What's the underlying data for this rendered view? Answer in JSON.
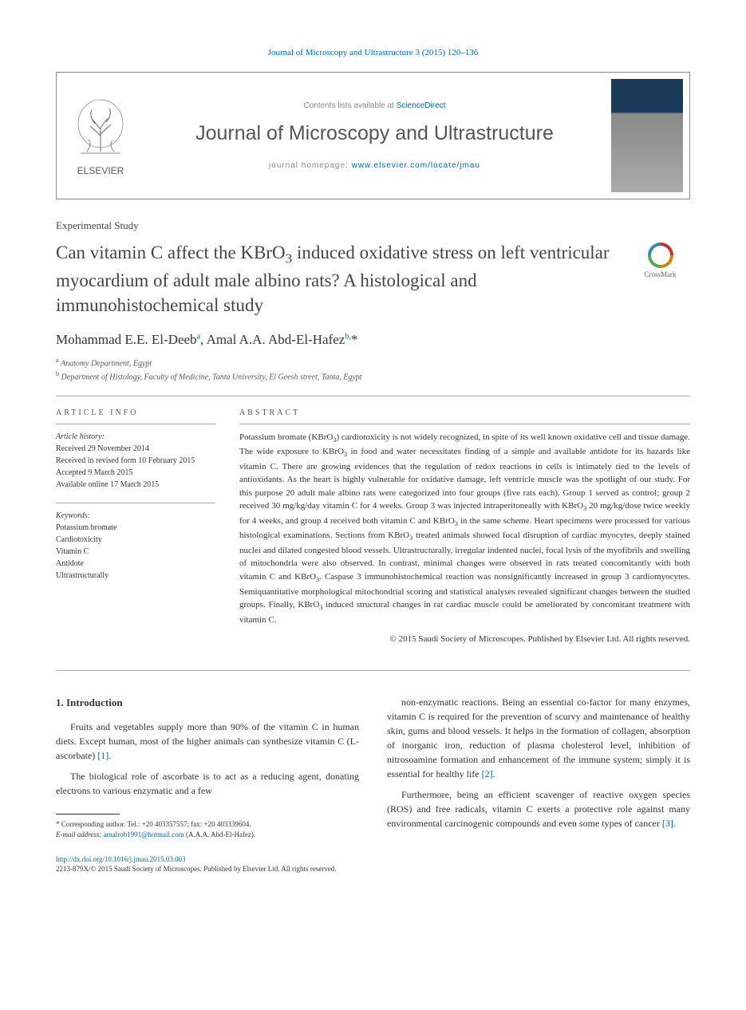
{
  "citation": {
    "journal_link": "Journal of Microscopy and Ultrastructure 3 (2015) 120–136"
  },
  "header": {
    "contents_prefix": "Contents lists available at ",
    "contents_link": "ScienceDirect",
    "journal_title": "Journal of Microscopy and Ultrastructure",
    "homepage_prefix": "journal homepage: ",
    "homepage_link": "www.elsevier.com/locate/jmau",
    "elsevier_label": "ELSEVIER"
  },
  "article": {
    "type": "Experimental Study",
    "title_html": "Can vitamin C affect the KBrO<sub>3</sub> induced oxidative stress on left ventricular myocardium of adult male albino rats? A histological and immunohistochemical study",
    "crossmark_label": "CrossMark",
    "authors_html": "Mohammad E.E. El-Deeb<sup>a</sup>, Amal A.A. Abd-El-Hafez<sup>b,</sup>*",
    "affiliations": [
      {
        "sup": "a",
        "text": "Anatomy Department, Egypt"
      },
      {
        "sup": "b",
        "text": "Department of Histology, Faculty of Medicine, Tanta University, El Geesh street, Tanta, Egypt"
      }
    ]
  },
  "info": {
    "heading": "ARTICLE INFO",
    "history_label": "Article history:",
    "history": [
      "Received 29 November 2014",
      "Received in revised form 10 February 2015",
      "Accepted 9 March 2015",
      "Available online 17 March 2015"
    ],
    "keywords_label": "Keywords:",
    "keywords": [
      "Potassium bromate",
      "Cardiotoxicity",
      "Vitamin C",
      "Antidote",
      "Ultrastructurally"
    ]
  },
  "abstract": {
    "heading": "ABSTRACT",
    "text_html": "Potassium bromate (KBrO<sub>3</sub>) cardiotoxicity is not widely recognized, in spite of its well known oxidative cell and tissue damage. The wide exposure to KBrO<sub>3</sub> in food and water necessitates finding of a simple and available antidote for its hazards like vitamin C. There are growing evidences that the regulation of redox reactions in cells is intimately tied to the levels of antioxidants. As the heart is highly vulnerable for oxidative damage, left ventricle muscle was the spotlight of our study. For this purpose 20 adult male albino rats were categorized into four groups (five rats each). Group 1 served as control; group 2 received 30 mg/kg/day vitamin C for 4 weeks. Group 3 was injected intraperitoneally with KBrO<sub>3</sub> 20 mg/kg/dose twice weekly for 4 weeks, and group 4 received both vitamin C and KBrO<sub>3</sub> in the same scheme. Heart specimens were processed for various histological examinations. Sections from KBrO<sub>3</sub> treated animals showed focal disruption of cardiac myocytes, deeply stained nuclei and dilated congested blood vessels. Ultrastructurally, irregular indented nuclei, focal lysis of the myofibrils and swelling of mitochondria were also observed. In contrast, minimal changes were observed in rats treated concomitantly with both vitamin C and KBrO<sub>3</sub>. Caspase 3 immunohistochemical reaction was nonsignificantly increased in group 3 cardiomyocytes. Semiquantitative morphological mitochondrial scoring and statistical analyses revealed significant changes between the studied groups. Finally, KBrO<sub>3</sub> induced structural changes in rat cardiac muscle could be ameliorated by concomitant treatment with vitamin C.",
    "copyright": "© 2015 Saudi Society of Microscopes. Published by Elsevier Ltd. All rights reserved."
  },
  "body": {
    "section_heading": "1. Introduction",
    "left_paragraphs": [
      "Fruits and vegetables supply more than 90% of the vitamin C in human diets. Except human, most of the higher animals can synthesize vitamin C (L-ascorbate) <a class='ref-link' href='#'>[1]</a>.",
      "The biological role of ascorbate is to act as a reducing agent, donating electrons to various enzymatic and a few"
    ],
    "right_paragraphs": [
      "non-enzymatic reactions. Being an essential co-factor for many enzymes, vitamin C is required for the prevention of scurvy and maintenance of healthy skin, gums and blood vessels. It helps in the formation of collagen, absorption of inorganic iron, reduction of plasma cholesterol level, inhibition of nitrosoamine formation and enhancement of the immune system; simply it is essential for healthy life <a class='ref-link' href='#'>[2]</a>.",
      "Furthermore, being an efficient scavenger of reactive oxygen species (ROS) and free radicals, vitamin C exerts a protective role against many environmental carcinogenic compounds and even some types of cancer <a class='ref-link' href='#'>[3]</a>."
    ]
  },
  "footnote": {
    "corresponding": "* Corresponding author. Tel.: +20 403357557; fax: +20 403339604.",
    "email_label": "E-mail address:",
    "email": "amalrob1991@hotmail.com",
    "email_suffix": "(A.A.A. Abd-El-Hafez)."
  },
  "footer": {
    "doi": "http://dx.doi.org/10.1016/j.jmau.2015.03.003",
    "issn_copyright": "2213-879X/© 2015 Saudi Society of Microscopes. Published by Elsevier Ltd. All rights reserved."
  },
  "colors": {
    "link": "#0066aa",
    "text": "#333333",
    "muted": "#888888"
  }
}
